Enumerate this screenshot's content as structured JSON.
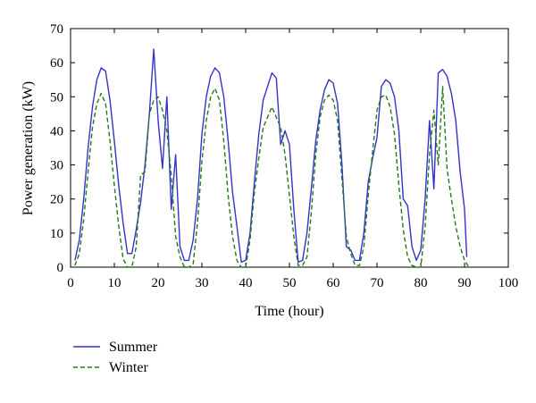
{
  "chart_data": {
    "type": "line",
    "xlabel": "Time (hour)",
    "ylabel": "Power generation (kW)",
    "xlim": [
      0,
      100
    ],
    "ylim": [
      0,
      70
    ],
    "xticks": [
      0,
      10,
      20,
      30,
      40,
      50,
      60,
      70,
      80,
      90,
      100
    ],
    "yticks": [
      0,
      10,
      20,
      30,
      40,
      50,
      60,
      70
    ],
    "grid": false,
    "legend_position": "bottom-left",
    "series": [
      {
        "name": "Summer",
        "color": "#3333cc",
        "line_style": "solid",
        "points": [
          [
            1,
            2
          ],
          [
            2,
            8
          ],
          [
            3,
            20
          ],
          [
            4,
            35
          ],
          [
            5,
            47
          ],
          [
            6,
            55
          ],
          [
            7,
            58.5
          ],
          [
            8,
            57.5
          ],
          [
            9,
            49
          ],
          [
            10,
            37
          ],
          [
            11,
            24
          ],
          [
            12,
            13
          ],
          [
            13,
            4
          ],
          [
            14,
            4
          ],
          [
            15,
            11
          ],
          [
            16,
            19
          ],
          [
            17,
            30
          ],
          [
            18,
            45
          ],
          [
            19,
            64
          ],
          [
            20,
            43
          ],
          [
            21,
            29
          ],
          [
            22,
            50
          ],
          [
            23,
            17
          ],
          [
            24,
            33
          ],
          [
            25,
            6
          ],
          [
            26,
            2
          ],
          [
            27,
            2
          ],
          [
            28,
            8
          ],
          [
            29,
            20
          ],
          [
            30,
            39
          ],
          [
            31,
            50
          ],
          [
            32,
            56
          ],
          [
            33,
            58.5
          ],
          [
            34,
            57
          ],
          [
            35,
            50
          ],
          [
            36,
            37
          ],
          [
            37,
            22
          ],
          [
            38,
            12
          ],
          [
            39,
            1.5
          ],
          [
            40,
            2
          ],
          [
            41,
            10
          ],
          [
            42,
            25
          ],
          [
            43,
            39
          ],
          [
            44,
            49
          ],
          [
            45,
            53
          ],
          [
            46,
            57
          ],
          [
            47,
            55.5
          ],
          [
            48,
            36
          ],
          [
            49,
            40
          ],
          [
            50,
            36
          ],
          [
            51,
            17
          ],
          [
            52,
            1.5
          ],
          [
            53,
            2
          ],
          [
            54,
            10
          ],
          [
            55,
            23
          ],
          [
            56,
            37
          ],
          [
            57,
            46
          ],
          [
            58,
            52
          ],
          [
            59,
            55
          ],
          [
            60,
            54
          ],
          [
            61,
            48
          ],
          [
            62,
            30
          ],
          [
            63,
            6
          ],
          [
            64,
            5
          ],
          [
            65,
            2
          ],
          [
            66,
            2
          ],
          [
            67,
            10
          ],
          [
            68,
            25
          ],
          [
            69,
            32
          ],
          [
            70,
            38
          ],
          [
            71,
            53
          ],
          [
            72,
            55
          ],
          [
            73,
            54
          ],
          [
            74,
            50
          ],
          [
            75,
            40
          ],
          [
            76,
            20
          ],
          [
            77,
            18
          ],
          [
            78,
            6
          ],
          [
            79,
            2
          ],
          [
            80,
            5
          ],
          [
            81,
            20
          ],
          [
            82,
            43
          ],
          [
            83,
            23
          ],
          [
            84,
            57
          ],
          [
            85,
            58
          ],
          [
            86,
            56
          ],
          [
            87,
            51
          ],
          [
            88,
            43
          ],
          [
            89,
            28
          ],
          [
            90,
            17
          ],
          [
            90.5,
            3
          ]
        ]
      },
      {
        "name": "Winter",
        "color": "#1f7a1f",
        "line_style": "dashed",
        "points": [
          [
            1,
            0.5
          ],
          [
            2,
            4
          ],
          [
            3,
            14
          ],
          [
            4,
            28
          ],
          [
            5,
            41
          ],
          [
            6,
            48
          ],
          [
            7,
            51
          ],
          [
            8,
            48
          ],
          [
            9,
            37
          ],
          [
            10,
            24
          ],
          [
            11,
            12
          ],
          [
            12,
            2.5
          ],
          [
            13,
            0
          ],
          [
            14,
            0
          ],
          [
            15,
            6
          ],
          [
            16,
            27
          ],
          [
            17,
            28
          ],
          [
            18,
            45
          ],
          [
            19,
            49
          ],
          [
            20,
            50
          ],
          [
            21,
            46
          ],
          [
            22,
            40
          ],
          [
            23,
            27
          ],
          [
            24,
            9
          ],
          [
            25,
            3
          ],
          [
            26,
            0
          ],
          [
            27,
            0
          ],
          [
            28,
            1
          ],
          [
            29,
            13
          ],
          [
            30,
            31
          ],
          [
            31,
            43
          ],
          [
            32,
            50
          ],
          [
            33,
            52.5
          ],
          [
            34,
            49
          ],
          [
            35,
            37
          ],
          [
            36,
            21
          ],
          [
            37,
            9
          ],
          [
            38,
            2
          ],
          [
            39,
            0
          ],
          [
            40,
            0
          ],
          [
            41,
            8
          ],
          [
            42,
            22
          ],
          [
            43,
            32
          ],
          [
            44,
            41
          ],
          [
            45,
            44
          ],
          [
            46,
            47
          ],
          [
            47,
            44
          ],
          [
            48,
            41
          ],
          [
            49,
            33
          ],
          [
            50,
            21
          ],
          [
            51,
            9
          ],
          [
            52,
            0.5
          ],
          [
            53,
            0.5
          ],
          [
            54,
            3
          ],
          [
            55,
            16
          ],
          [
            56,
            33
          ],
          [
            57,
            44
          ],
          [
            58,
            49
          ],
          [
            59,
            50.5
          ],
          [
            60,
            49
          ],
          [
            61,
            43
          ],
          [
            62,
            26
          ],
          [
            63,
            9
          ],
          [
            64,
            4
          ],
          [
            65,
            0.5
          ],
          [
            66,
            0.5
          ],
          [
            67,
            6
          ],
          [
            68,
            21
          ],
          [
            69,
            34
          ],
          [
            70,
            46
          ],
          [
            71,
            50
          ],
          [
            72,
            50.5
          ],
          [
            73,
            47
          ],
          [
            74,
            39
          ],
          [
            75,
            24
          ],
          [
            76,
            11
          ],
          [
            77,
            3
          ],
          [
            78,
            0.5
          ],
          [
            79,
            0
          ],
          [
            80,
            0
          ],
          [
            81,
            12
          ],
          [
            82,
            33
          ],
          [
            83,
            46
          ],
          [
            84,
            30
          ],
          [
            85,
            53
          ],
          [
            86,
            29
          ],
          [
            87,
            20
          ],
          [
            88,
            12
          ],
          [
            89,
            6
          ],
          [
            90,
            2
          ],
          [
            91,
            0
          ]
        ]
      }
    ]
  }
}
